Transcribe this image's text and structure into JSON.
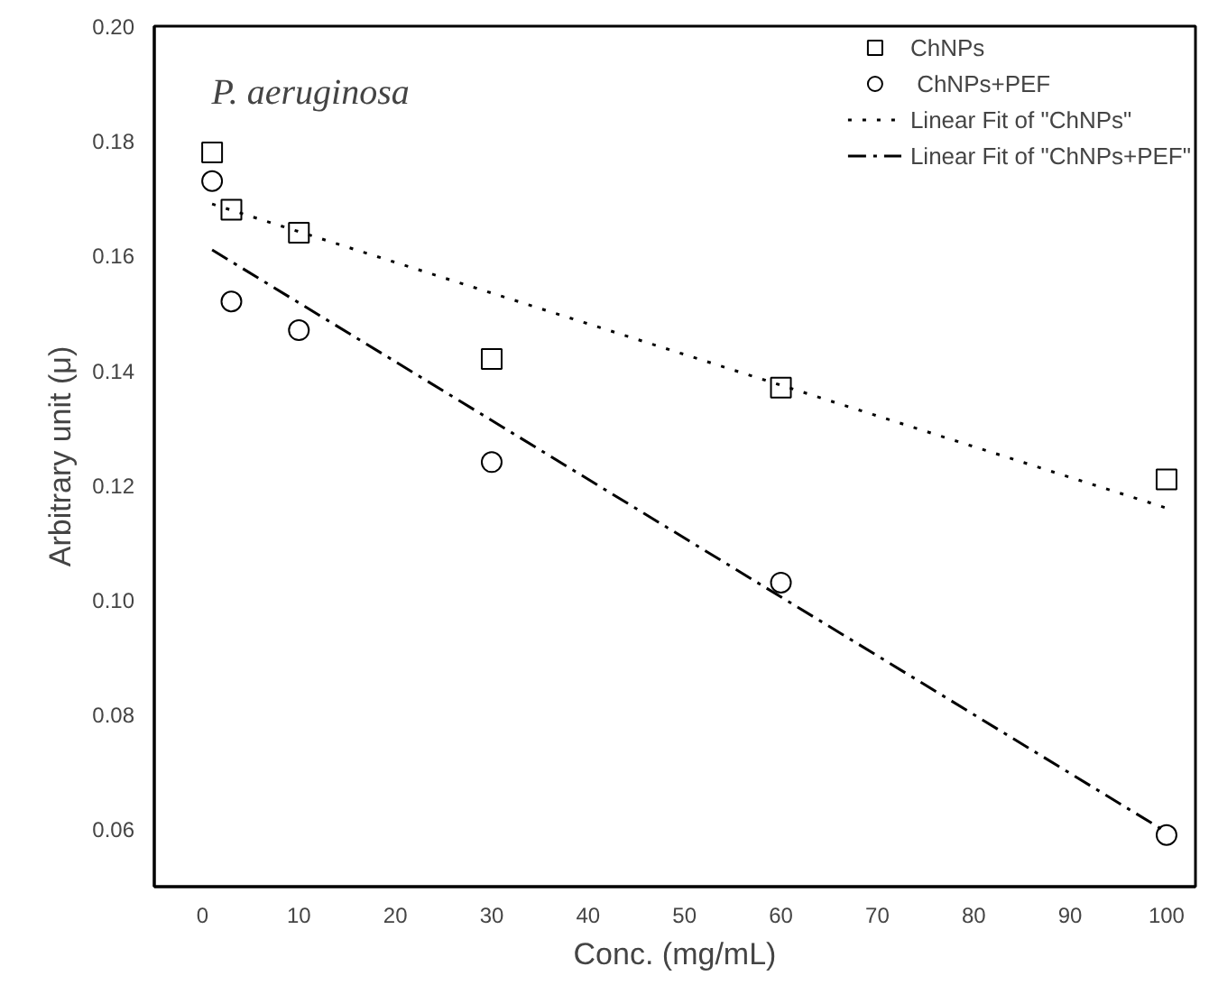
{
  "chart_data": {
    "type": "scatter",
    "title": "P. aeruginosa",
    "xlabel": "Conc. (mg/mL)",
    "ylabel": "Arbitrary unit (μ)",
    "xlim": [
      -5,
      103
    ],
    "ylim": [
      0.05,
      0.2
    ],
    "xticks": [
      0,
      10,
      20,
      30,
      40,
      50,
      60,
      70,
      80,
      90,
      100
    ],
    "yticks": [
      {
        "value": 0.06,
        "label": "0.06"
      },
      {
        "value": 0.08,
        "label": "0.08"
      },
      {
        "value": 0.1,
        "label": "0.10"
      },
      {
        "value": 0.12,
        "label": "0.12"
      },
      {
        "value": 0.14,
        "label": "0.14"
      },
      {
        "value": 0.16,
        "label": "0.16"
      },
      {
        "value": 0.18,
        "label": "0.18"
      },
      {
        "value": 0.2,
        "label": "0.20"
      }
    ],
    "grid": false,
    "legend": "top right",
    "series": [
      {
        "name": "ChNPs",
        "marker": "square",
        "color": "#000000",
        "x": [
          1,
          3,
          10,
          30,
          60,
          100
        ],
        "values": [
          0.178,
          0.168,
          0.164,
          0.142,
          0.137,
          0.121
        ]
      },
      {
        "name": " ChNPs+PEF",
        "marker": "circle",
        "color": "#000000",
        "x": [
          1,
          3,
          10,
          30,
          60,
          100
        ],
        "values": [
          0.173,
          0.152,
          0.147,
          0.124,
          0.103,
          0.059
        ]
      },
      {
        "name": "Linear Fit of \"ChNPs\"",
        "type": "line",
        "line_style": "dotted",
        "color": "#000000",
        "x": [
          1,
          100
        ],
        "values": [
          0.169,
          0.116
        ]
      },
      {
        "name": "Linear Fit of \"ChNPs+PEF\"",
        "type": "line",
        "line_style": "dashdot",
        "color": "#000000",
        "x": [
          1,
          100
        ],
        "values": [
          0.161,
          0.0595
        ]
      }
    ]
  }
}
